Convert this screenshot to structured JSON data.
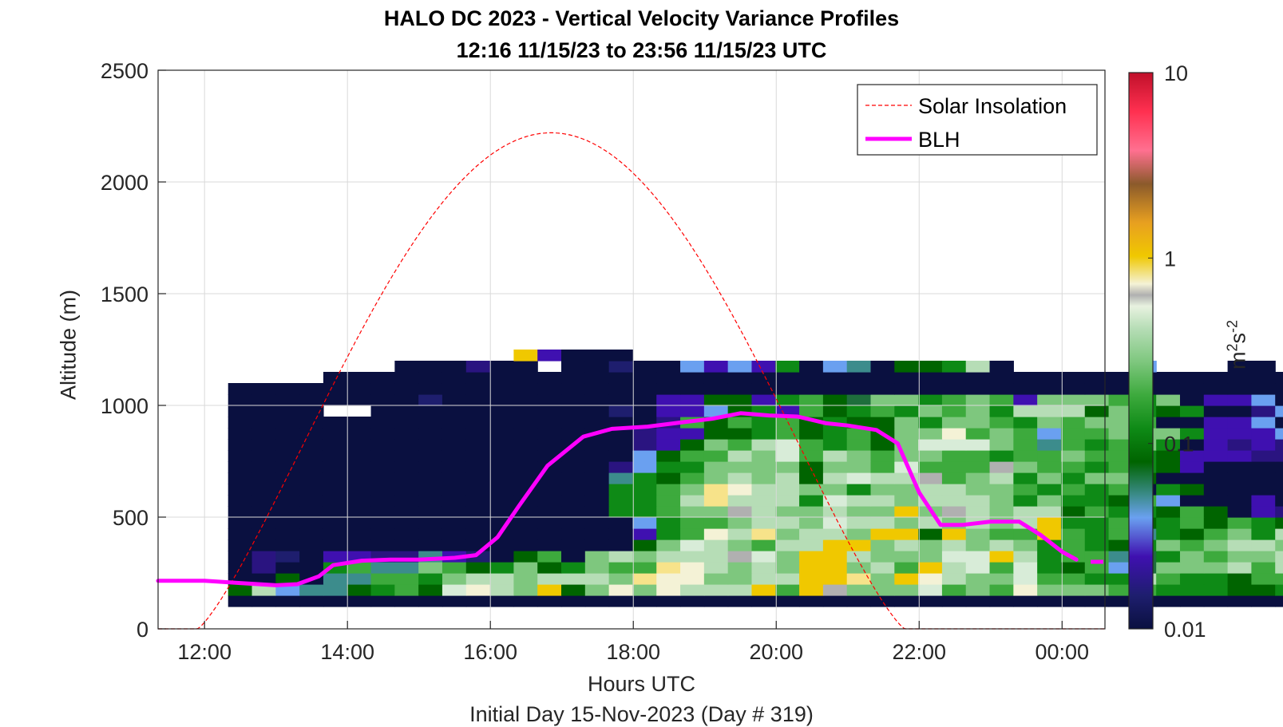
{
  "chart_data": {
    "type": "heatmap",
    "title": "HALO DC 2023 - Vertical Velocity Variance Profiles",
    "subtitle": "12:16 11/15/23 to 23:56 11/15/23  UTC",
    "xlabel": "Hours UTC",
    "ylabel": "Altitude (m)",
    "footnote": "Initial Day 15-Nov-2023 (Day # 319)",
    "x_tick_labels": [
      "12:00",
      "14:00",
      "16:00",
      "18:00",
      "20:00",
      "22:00",
      "00:00"
    ],
    "x_tick_hours": [
      12,
      14,
      16,
      18,
      20,
      22,
      24
    ],
    "xlim": [
      11.35,
      24.6
    ],
    "y_ticks": [
      0,
      500,
      1000,
      1500,
      2000,
      2500
    ],
    "ylim": [
      0,
      2500
    ],
    "grid": true,
    "legend_position": "top-right",
    "colorbar": {
      "scale": "log",
      "range": [
        0.01,
        10
      ],
      "tick_labels": [
        "10",
        "1",
        "0.1",
        "0.01"
      ],
      "tick_values": [
        10,
        1,
        0.1,
        0.01
      ],
      "unit_base": "m",
      "unit_exp1": "2",
      "unit_mid": "s",
      "unit_exp2": "-2"
    },
    "legend": [
      {
        "label": "Solar Insolation",
        "color": "#ff0000",
        "style": "dashed"
      },
      {
        "label": "BLH",
        "color": "#ff00ff",
        "style": "solid"
      }
    ],
    "heatmap": {
      "time_start_hour": 12.33,
      "time_step_hours": 0.333,
      "altitude_levels_m": [
        100,
        150,
        200,
        250,
        300,
        350,
        400,
        450,
        500,
        550,
        600,
        650,
        700,
        750,
        800,
        850,
        900,
        950,
        1000,
        1050,
        1100,
        1150,
        1200,
        1250
      ],
      "level_height_m": 50,
      "color_codes": {
        "N": "#0a1040",
        "W": "#ffffff",
        "P": "#3f10b0",
        "V": "#2a1480",
        "U": "#1e1e6e",
        "B": "#6aa0f0",
        "T": "#3c8c8c",
        "G": "#0e8a16",
        "D": "#006400",
        "M": "#3daa3d",
        "L": "#7ec77e",
        "S": "#b6ddb6",
        "E": "#d8ecd8",
        "Y": "#f0c800",
        "O": "#f7e38a",
        "C": "#f4f2d6",
        "R": "#b0b0b0",
        "K": "#1e6e3c"
      },
      "rows_bottom_to_top": [
        "NNNNNNNNNNNNNNNNNNNNNNNNNNNNNNNNNNNNNNNNNNNNNNN",
        "DSBTTDGMDECSLYDLCLCSSSYMYRLLLEMLMCLLLMMGGGDDGMDG",
        "NNDNTTMMGLSSLSSSLOCCLLSSYYOLYCSLLEMMGGSMGGDMMSGLL",
        "NVNNGMTTLMDGLDGLMMOCSLSLYYLSMYSEMEGDMBKLLLSMSLLL",
        "NVUNPPVVTPUNDMNLSLSSSRELYYSLLLEEYSGMMTKGLMLLSMLL",
        "NNNNNNNNNNNNNNNNNDLESLMSSYYLSLSLSLGMGDGLMLSSLLLL",
        "NNNNNNNNNNNNNNNNNPGMCSOLSSLYYDYLMMYMGMTGDMLGSLGTT",
        "NNNNNNNNNNNNNNNNNBGMMLSSLESSLSLSLSYGGMDGMDMGDGDD",
        "NNNNNNNNNNNNNNNNGGMLLRSLLSLLYLRSLSSDMGGDMDNPVGND",
        "NNNNNNNNNNNNNNNNGGMSOSSSGESSLSSSLGLGGDMBNNNPNNN",
        "NNNNNNNNNNNNNNNNGGMLOCSSLLGLLSSLLMGMGMNGDNNNNNN",
        "NNNNNNNNNNNNNNNNTGDMLSLSDSESSRMLSGLGLLDNNNNNNNN",
        "NNNNNNNNNNNNNNNNVBGGLLLLDLLMEMMMRLMMGMGDPNNNNNN",
        "NNNNNNNNNNNNNNNNNBDMMSLEMSLMLLMMGMMLMMGDPPPVVNN",
        "NNNNNNNNNNNNNNNNNVPDLMSEMGMDLEEELMTMGMLGNPVPVNN",
        "NNNNNNNNNNNNNNNNNVPPDDGMDGMDLLCMLMBMMLLLGPPPBNN",
        "NNNNNNNNNNNNNNNNNNVMDMGMDGDDLGLLMGLMLLMNNPPBNN",
        "NNNNWWNNNNNNNNNNUNPPBDGPMDGMGLMLGSSSDLGDGNNVBNN",
        "NNNNNNNNUNNNNNNNNNPPDDPGMDKLLGMLMPLLLMGLNPPBNNN",
        "NNNNNNNNNNNNNNNNNNNNNNNNNNNNNNNNNNNNNNNNNNNNNNN",
        "WWWWNNNNNNNNNNNNNNNNNNNNNNNNNNNNNNNNNNNNNNNNNNN",
        "WWWWWWWNNNVNNWNNUNNBPBPGNBTNDDGSNWWWWWBWWWNN",
        "WWWWWWWWWWWWYPNNNWWWWWWWWWWWWWWWWWWWWWWWWWWWW",
        "WWWWWWWWWWWWWWWWWWWWWWWWWWWWWWWWWWWWWWWWWWWWWWWWWWWGWWWW"
      ],
      "top_extent_overrides": {
        "top_row_start_col": 0
      }
    },
    "blh_series": {
      "name": "BLH",
      "x_hours": [
        11.35,
        12.0,
        12.5,
        13.0,
        13.3,
        13.6,
        13.8,
        14.2,
        14.6,
        15.0,
        15.5,
        15.8,
        16.1,
        16.4,
        16.8,
        17.3,
        17.7,
        18.2,
        18.7,
        19.1,
        19.5,
        19.9,
        20.3,
        20.7,
        21.0,
        21.4,
        21.7,
        22.0,
        22.3,
        22.6,
        23.0,
        23.4,
        23.7,
        24.0,
        24.2
      ],
      "y_m": [
        215,
        215,
        205,
        195,
        200,
        235,
        285,
        305,
        310,
        310,
        318,
        330,
        410,
        550,
        730,
        860,
        895,
        905,
        925,
        940,
        965,
        955,
        950,
        920,
        910,
        890,
        830,
        610,
        465,
        465,
        480,
        480,
        420,
        345,
        310
      ],
      "trailing_segment_x_hours": [
        24.4,
        24.6
      ],
      "trailing_segment_y_m": [
        300,
        300
      ]
    },
    "solar_series": {
      "name": "Solar Insolation",
      "peak_hour": 16.85,
      "half_width_hours": 4.95,
      "peak_altitude_m": 2220,
      "exponent": 1.25
    }
  }
}
